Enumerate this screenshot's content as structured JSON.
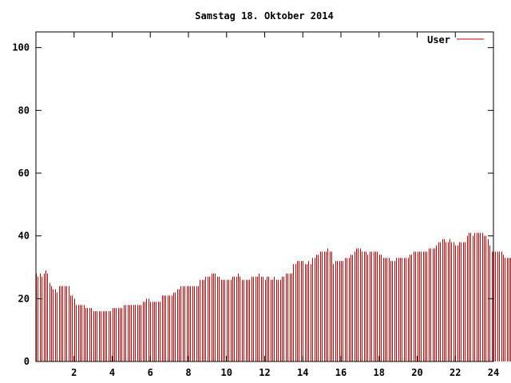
{
  "chart_data": {
    "type": "bar",
    "title": "Samstag 18. Oktober 2014",
    "xlabel": "",
    "ylabel": "",
    "xlim": [
      0,
      24
    ],
    "ylim": [
      0,
      105
    ],
    "x_ticks": [
      2,
      4,
      6,
      8,
      10,
      12,
      14,
      16,
      18,
      20,
      22,
      24
    ],
    "y_ticks": [
      0,
      20,
      40,
      60,
      80,
      100
    ],
    "grid": false,
    "legend_position": "top-right",
    "series": [
      {
        "name": "User",
        "color": "#cc0000",
        "x_start": 0,
        "x_step": 0.1,
        "values": [
          28,
          27,
          28,
          27,
          28,
          29,
          28,
          25,
          24,
          23,
          23,
          22,
          24,
          24,
          24,
          24,
          24,
          24,
          21,
          21,
          20,
          18,
          18,
          18,
          18,
          18,
          17,
          17,
          17,
          17,
          16,
          16,
          16,
          16,
          16,
          16,
          16,
          16,
          16,
          16,
          17,
          17,
          17,
          17,
          17,
          17,
          18,
          18,
          18,
          18,
          18,
          18,
          18,
          18,
          18,
          18,
          19,
          19,
          20,
          20,
          19,
          19,
          19,
          19,
          19,
          19,
          21,
          21,
          21,
          21,
          21,
          21,
          22,
          22,
          23,
          23,
          24,
          24,
          24,
          24,
          24,
          24,
          24,
          24,
          24,
          24,
          26,
          26,
          26,
          27,
          27,
          27,
          28,
          28,
          28,
          27,
          27,
          26,
          26,
          26,
          26,
          26,
          26,
          27,
          27,
          27,
          28,
          27,
          26,
          26,
          26,
          26,
          26,
          27,
          27,
          27,
          27,
          28,
          27,
          27,
          26,
          27,
          27,
          26,
          26,
          27,
          26,
          26,
          26,
          27,
          27,
          28,
          28,
          28,
          28,
          31,
          31,
          32,
          32,
          32,
          32,
          31,
          31,
          32,
          31,
          33,
          33,
          34,
          34,
          35,
          35,
          35,
          35,
          36,
          35,
          35,
          31,
          32,
          32,
          32,
          32,
          32,
          33,
          33,
          33,
          34,
          34,
          35,
          36,
          36,
          36,
          35,
          35,
          35,
          34,
          35,
          35,
          35,
          35,
          35,
          34,
          34,
          33,
          33,
          33,
          33,
          32,
          32,
          32,
          33,
          33,
          33,
          33,
          33,
          33,
          33,
          34,
          34,
          35,
          35,
          35,
          35,
          35,
          35,
          35,
          35,
          36,
          36,
          36,
          36,
          37,
          38,
          38,
          39,
          39,
          38,
          38,
          39,
          38,
          38,
          37,
          37,
          38,
          38,
          38,
          38,
          40,
          41,
          41,
          40,
          41,
          41,
          41,
          41,
          41,
          40,
          40,
          39,
          37,
          35,
          35,
          35,
          35,
          35,
          35,
          34,
          33,
          33,
          33,
          33,
          33,
          35,
          35,
          35,
          33,
          33,
          33,
          33,
          34,
          34,
          33,
          33,
          33,
          33
        ]
      }
    ]
  }
}
